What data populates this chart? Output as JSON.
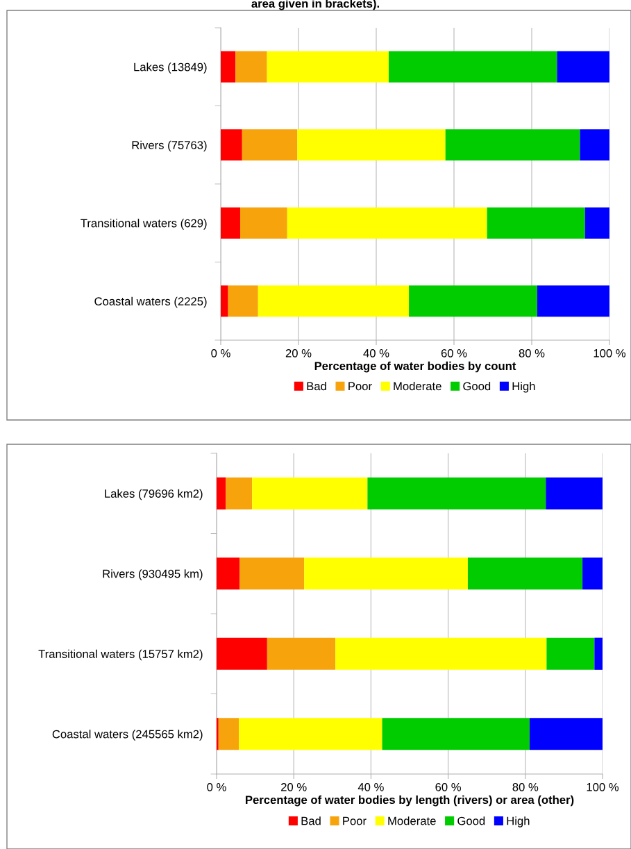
{
  "chart_data": [
    {
      "type": "bar",
      "orientation": "horizontal",
      "stacked": true,
      "title": "area given in brackets).",
      "categories": [
        "Lakes (13849)",
        "Rivers (75763)",
        "Transitional waters (629)",
        "Coastal waters (2225)"
      ],
      "series": [
        {
          "name": "Bad",
          "color": "#ff0000",
          "values": [
            3.8,
            5.5,
            5.0,
            1.9
          ]
        },
        {
          "name": "Poor",
          "color": "#f7a30c",
          "values": [
            8.1,
            14.2,
            12.1,
            7.7
          ]
        },
        {
          "name": "Moderate",
          "color": "#ffff00",
          "values": [
            31.3,
            38.1,
            51.4,
            38.8
          ]
        },
        {
          "name": "Good",
          "color": "#00cc00",
          "values": [
            43.3,
            34.6,
            25.2,
            33.0
          ]
        },
        {
          "name": "High",
          "color": "#0000ff",
          "values": [
            13.5,
            7.6,
            6.3,
            18.6
          ]
        }
      ],
      "xlabel": "Percentage of water bodies by count",
      "xlim": [
        0,
        100
      ],
      "xticks": [
        {
          "value": 0,
          "label": "0 %"
        },
        {
          "value": 20,
          "label": "20 %"
        },
        {
          "value": 40,
          "label": "40 %"
        },
        {
          "value": 60,
          "label": "60 %"
        },
        {
          "value": 80,
          "label": "80 %"
        },
        {
          "value": 100,
          "label": "100 %"
        }
      ],
      "grid": "x",
      "legend": "bottom"
    },
    {
      "type": "bar",
      "orientation": "horizontal",
      "stacked": true,
      "categories": [
        "Lakes (79696 km2)",
        "Rivers (930495 km)",
        "Transitional waters (15757 km2)",
        "Coastal waters (245565 km2)"
      ],
      "series": [
        {
          "name": "Bad",
          "color": "#ff0000",
          "values": [
            2.4,
            6.0,
            13.1,
            0.5
          ]
        },
        {
          "name": "Poor",
          "color": "#f7a30c",
          "values": [
            6.8,
            16.7,
            17.7,
            5.3
          ]
        },
        {
          "name": "Moderate",
          "color": "#ffff00",
          "values": [
            29.9,
            42.4,
            54.7,
            37.1
          ]
        },
        {
          "name": "Good",
          "color": "#00cc00",
          "values": [
            46.2,
            29.7,
            12.4,
            38.2
          ]
        },
        {
          "name": "High",
          "color": "#0000ff",
          "values": [
            14.7,
            5.2,
            2.1,
            18.9
          ]
        }
      ],
      "xlabel": "Percentage of water bodies by length (rivers) or area (other)",
      "xlim": [
        0,
        100
      ],
      "xticks": [
        {
          "value": 0,
          "label": "0 %"
        },
        {
          "value": 20,
          "label": "20 %"
        },
        {
          "value": 40,
          "label": "40 %"
        },
        {
          "value": 60,
          "label": "60 %"
        },
        {
          "value": 80,
          "label": "80 %"
        },
        {
          "value": 100,
          "label": "100 %"
        }
      ],
      "grid": "x",
      "legend": "bottom"
    }
  ]
}
